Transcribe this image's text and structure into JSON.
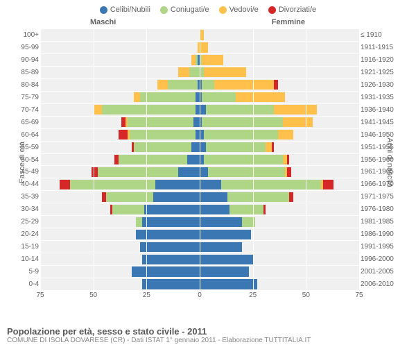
{
  "chart": {
    "type": "population-pyramid",
    "legend": [
      {
        "label": "Celibi/Nubili",
        "color": "#3a77b3"
      },
      {
        "label": "Coniugati/e",
        "color": "#aed686"
      },
      {
        "label": "Vedovi/e",
        "color": "#ffc04c"
      },
      {
        "label": "Divorziati/e",
        "color": "#d62728"
      }
    ],
    "headers": {
      "male": "Maschi",
      "female": "Femmine"
    },
    "ylabel_left": "Fasce di età",
    "ylabel_right": "Anni di nascita",
    "x_max": 75,
    "x_ticks": [
      75,
      50,
      25,
      0,
      25,
      50,
      75
    ],
    "background_color": "#f0f0f0",
    "grid_color": "#ffffff",
    "label_fontsize": 10,
    "header_fontsize": 11,
    "age_groups": [
      "100+",
      "95-99",
      "90-94",
      "85-89",
      "80-84",
      "75-79",
      "70-74",
      "65-69",
      "60-64",
      "55-59",
      "50-54",
      "45-49",
      "40-44",
      "35-39",
      "30-34",
      "25-29",
      "20-24",
      "15-19",
      "10-14",
      "5-9",
      "0-4"
    ],
    "birth_years": [
      "≤ 1910",
      "1911-1915",
      "1916-1920",
      "1921-1925",
      "1926-1930",
      "1931-1935",
      "1936-1940",
      "1941-1945",
      "1946-1950",
      "1951-1955",
      "1956-1960",
      "1961-1965",
      "1966-1970",
      "1971-1975",
      "1976-1980",
      "1981-1985",
      "1986-1990",
      "1991-1995",
      "1996-2000",
      "2001-2005",
      "2006-2010"
    ],
    "data": [
      {
        "m": [
          0,
          0,
          0,
          0
        ],
        "f": [
          0,
          0,
          2,
          0
        ]
      },
      {
        "m": [
          0,
          0,
          1,
          0
        ],
        "f": [
          0,
          0,
          4,
          0
        ]
      },
      {
        "m": [
          1,
          1,
          2,
          0
        ],
        "f": [
          0,
          1,
          10,
          0
        ]
      },
      {
        "m": [
          0,
          5,
          5,
          0
        ],
        "f": [
          0,
          2,
          20,
          0
        ]
      },
      {
        "m": [
          1,
          14,
          5,
          0
        ],
        "f": [
          1,
          6,
          28,
          2
        ]
      },
      {
        "m": [
          2,
          26,
          3,
          0
        ],
        "f": [
          1,
          16,
          23,
          0
        ]
      },
      {
        "m": [
          2,
          44,
          4,
          0
        ],
        "f": [
          3,
          32,
          20,
          0
        ]
      },
      {
        "m": [
          3,
          31,
          1,
          2
        ],
        "f": [
          1,
          38,
          14,
          0
        ]
      },
      {
        "m": [
          2,
          31,
          1,
          4
        ],
        "f": [
          2,
          35,
          7,
          0
        ]
      },
      {
        "m": [
          4,
          27,
          0,
          1
        ],
        "f": [
          3,
          28,
          3,
          1
        ]
      },
      {
        "m": [
          6,
          32,
          0,
          2
        ],
        "f": [
          2,
          37,
          2,
          1
        ]
      },
      {
        "m": [
          10,
          38,
          0,
          3
        ],
        "f": [
          4,
          36,
          1,
          2
        ]
      },
      {
        "m": [
          21,
          40,
          0,
          5
        ],
        "f": [
          10,
          47,
          1,
          5
        ]
      },
      {
        "m": [
          22,
          22,
          0,
          2
        ],
        "f": [
          13,
          29,
          0,
          2
        ]
      },
      {
        "m": [
          26,
          15,
          0,
          1
        ],
        "f": [
          14,
          16,
          0,
          1
        ]
      },
      {
        "m": [
          27,
          3,
          0,
          0
        ],
        "f": [
          20,
          6,
          0,
          0
        ]
      },
      {
        "m": [
          30,
          0,
          0,
          0
        ],
        "f": [
          24,
          0,
          0,
          0
        ]
      },
      {
        "m": [
          28,
          0,
          0,
          0
        ],
        "f": [
          20,
          0,
          0,
          0
        ]
      },
      {
        "m": [
          27,
          0,
          0,
          0
        ],
        "f": [
          25,
          0,
          0,
          0
        ]
      },
      {
        "m": [
          32,
          0,
          0,
          0
        ],
        "f": [
          23,
          0,
          0,
          0
        ]
      },
      {
        "m": [
          27,
          0,
          0,
          0
        ],
        "f": [
          27,
          0,
          0,
          0
        ]
      }
    ]
  },
  "footer": {
    "title": "Popolazione per età, sesso e stato civile - 2011",
    "subtitle": "COMUNE DI ISOLA DOVARESE (CR) - Dati ISTAT 1° gennaio 2011 - Elaborazione TUTTITALIA.IT"
  }
}
